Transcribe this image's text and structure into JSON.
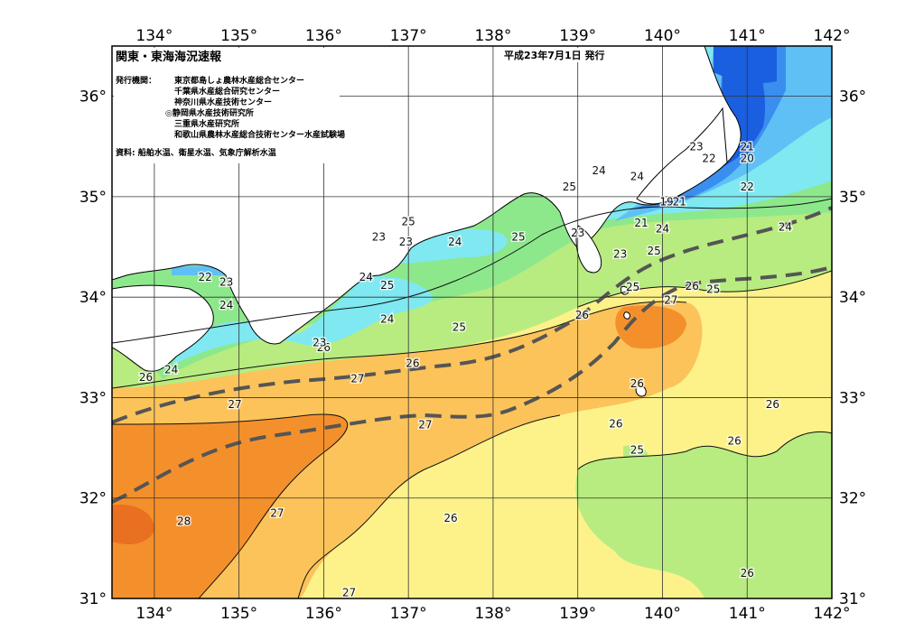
{
  "title": "関東・東海海況速報",
  "date": "平成23年7月1日 発行",
  "issuers_label": "発行機関：",
  "issuers": [
    "東京都島しょ農林水産総合センター",
    "千葉県水産総合研究センター",
    "神奈川県水産技術センター",
    "◎静岡県水産技術研究所",
    "三重県水産研究所",
    "和歌山県農林水産総合技術センター水産試験場"
  ],
  "source": "資料: 船舶水温、衛星水温、気象庁解析水温",
  "lon_ticks": [
    134,
    135,
    136,
    137,
    138,
    139,
    140,
    141,
    142
  ],
  "lat_ticks": [
    31,
    32,
    33,
    34,
    35,
    36
  ],
  "degree_symbol": "°",
  "extent": {
    "lon": [
      133.5,
      142.0
    ],
    "lat": [
      31.0,
      36.5
    ]
  },
  "colors": {
    "t20": "#1a5fe0",
    "t21": "#3a8ef0",
    "t22": "#5fc0f5",
    "t23": "#7fe8f0",
    "t24": "#8de88c",
    "t25": "#b8ec80",
    "t26": "#fdf28a",
    "t27": "#fbc35a",
    "t28": "#f4902c",
    "t29": "#e87020",
    "land": "#ffffff",
    "grid": "#333333",
    "kuroshio": "#555555"
  },
  "contour_labels": [
    {
      "t": "26",
      "lon": 133.9,
      "lat": 33.2
    },
    {
      "t": "24",
      "lon": 134.2,
      "lat": 33.28
    },
    {
      "t": "22",
      "lon": 134.6,
      "lat": 34.2
    },
    {
      "t": "23",
      "lon": 134.85,
      "lat": 34.15
    },
    {
      "t": "24",
      "lon": 134.85,
      "lat": 33.92
    },
    {
      "t": "27",
      "lon": 134.95,
      "lat": 32.93
    },
    {
      "t": "28",
      "lon": 134.35,
      "lat": 31.77
    },
    {
      "t": "27",
      "lon": 135.45,
      "lat": 31.85
    },
    {
      "t": "26",
      "lon": 136.0,
      "lat": 33.5
    },
    {
      "t": "23",
      "lon": 135.95,
      "lat": 33.55
    },
    {
      "t": "24",
      "lon": 136.5,
      "lat": 34.2
    },
    {
      "t": "25",
      "lon": 136.75,
      "lat": 34.12
    },
    {
      "t": "24",
      "lon": 136.75,
      "lat": 33.78
    },
    {
      "t": "23",
      "lon": 136.65,
      "lat": 34.6
    },
    {
      "t": "23",
      "lon": 136.97,
      "lat": 34.55
    },
    {
      "t": "25",
      "lon": 137.0,
      "lat": 34.75
    },
    {
      "t": "26",
      "lon": 137.05,
      "lat": 33.34
    },
    {
      "t": "27",
      "lon": 136.4,
      "lat": 33.19
    },
    {
      "t": "27",
      "lon": 137.2,
      "lat": 32.73
    },
    {
      "t": "24",
      "lon": 137.55,
      "lat": 34.55
    },
    {
      "t": "25",
      "lon": 137.6,
      "lat": 33.7
    },
    {
      "t": "26",
      "lon": 137.5,
      "lat": 31.8
    },
    {
      "t": "27",
      "lon": 136.3,
      "lat": 31.06
    },
    {
      "t": "25",
      "lon": 138.3,
      "lat": 34.6
    },
    {
      "t": "25",
      "lon": 138.9,
      "lat": 35.1
    },
    {
      "t": "23",
      "lon": 139.0,
      "lat": 34.64
    },
    {
      "t": "24",
      "lon": 139.25,
      "lat": 35.26
    },
    {
      "t": "24",
      "lon": 139.7,
      "lat": 35.2
    },
    {
      "t": "21",
      "lon": 139.75,
      "lat": 34.74
    },
    {
      "t": "23",
      "lon": 139.5,
      "lat": 34.43
    },
    {
      "t": "26",
      "lon": 139.05,
      "lat": 33.82
    },
    {
      "t": "25",
      "lon": 139.65,
      "lat": 34.1
    },
    {
      "t": "27",
      "lon": 140.1,
      "lat": 33.97
    },
    {
      "t": "24",
      "lon": 140.0,
      "lat": 34.68
    },
    {
      "t": "25",
      "lon": 139.9,
      "lat": 34.46
    },
    {
      "t": "19",
      "lon": 140.05,
      "lat": 34.95
    },
    {
      "t": "21",
      "lon": 140.2,
      "lat": 34.95
    },
    {
      "t": "23",
      "lon": 140.4,
      "lat": 35.5
    },
    {
      "t": "22",
      "lon": 140.55,
      "lat": 35.38
    },
    {
      "t": "21",
      "lon": 141.0,
      "lat": 35.5
    },
    {
      "t": "20",
      "lon": 141.0,
      "lat": 35.38
    },
    {
      "t": "22",
      "lon": 141.0,
      "lat": 35.1
    },
    {
      "t": "26",
      "lon": 140.35,
      "lat": 34.11
    },
    {
      "t": "25",
      "lon": 140.6,
      "lat": 34.08
    },
    {
      "t": "24",
      "lon": 141.45,
      "lat": 34.7
    },
    {
      "t": "26",
      "lon": 139.7,
      "lat": 33.14
    },
    {
      "t": "26",
      "lon": 139.45,
      "lat": 32.74
    },
    {
      "t": "25",
      "lon": 139.7,
      "lat": 32.48
    },
    {
      "t": "26",
      "lon": 140.85,
      "lat": 32.57
    },
    {
      "t": "26",
      "lon": 141.3,
      "lat": 32.93
    },
    {
      "t": "26",
      "lon": 141.0,
      "lat": 31.25
    }
  ]
}
